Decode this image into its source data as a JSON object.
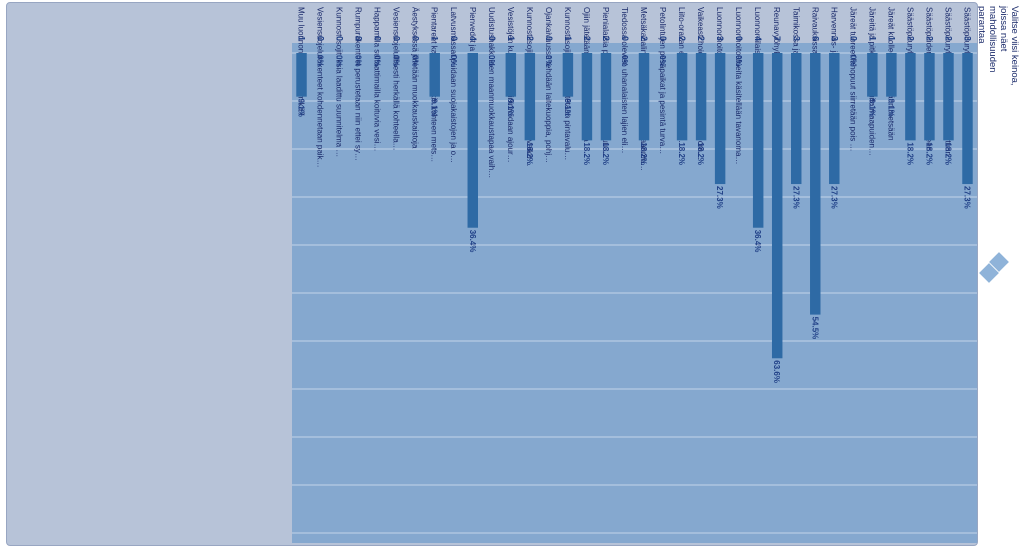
{
  "question": "Valitse viisi keinoa, joissa näet mahdollisuuden parantaa luonnonhoidon tasoa ja metsänkäytön kestävyyttä kasarmustehtäväksi",
  "chart_data": {
    "type": "bar",
    "orientation": "horizontal",
    "ylim": [
      0,
      100
    ],
    "categories": [
      "Säästöpuuryhmiä ja yksittäisiä monimuotoisuuden arvokohteita putta...",
      "Säästöpuuryhmät jätetään leimikosta tunnistettuihin erisaiasin...",
      "Säästöpuiden määrä valitaellan tilanteen ja metsänomistajan...",
      "Säästöpuuryhmiä poltetaan",
      "Järeät kuolleet puut jätetään metsään",
      "Järeitä ja pitkäikä-lehtopuita maapuiden varotaan rikkomasta",
      "Järeät tuoreet lahopuut siirretään pois koneiden tieltä",
      "Harvennus- ja uudistushakkuissa tehdään tekopökkelöitä",
      "Raivauksissa, energiapuuharvennuksissa ja kasvatushakkuissa säilytetään...",
      "Taimikossa ja kasvatusmetsässä säilytetään lehtipuuskoitus",
      "Reunavyöhykkeitä ja harvennushakkuissa jätetään riistatiheikköjä ja muuta",
      "Luonnontilaisen tai luonnontilaisen kaltainen arvokas elinympäristö...",
      "Luonnonhoitoalueita käsitellään tavanomaista varovaisemmin",
      "Luonnonhoitoalueilla edistetään luontoisuutta ja rakennepiirteitä tal...",
      "Vaikeasti hoidettavia luontokohteiden ominaispiirteitä ja rakenteita",
      "Liito-oravan elinpaikat ja lisääntymis- ja levähdyspaikat turvataan hakkuissa",
      "Petolintujen pesäpaikat ja pesintä turvataan hakkuissa",
      "Metsäkanalintujen pesiä suojataan maanmuokkauksella",
      "Tiedossa olevien uhanalaisten lajien elinpaikat turvataan",
      "Pienialaisia pienvesikohteita tuetaan uudistusalueen luonnonhoidoissa...",
      "Ojiin jätetään kaivu- ja perkauskatkoja",
      "Kunnostusojituksia perustetaan pintavalutuskenttiä",
      "Ojankaivuussa tehdään laitekuoppia, pohjapatoja ja laskeutusaltaita",
      "Kunnostusojituksia rakennetaan monivaikutteisia kosteikkoja",
      "Vesistöjen kuormitusta minimoidaan ajouransuunnittelussa",
      "Uudistushakkuiden maanmuokkaustapaa vaihdellaan maapohjan...",
      "Pienvedet ja ojien yltykset suojataan hakuissa ja tilapäisiä",
      "Latvusmassat puidaan suojakaistojen ja ojien ulkopuolelle",
      "Pientareet kaivetaan harkin kohteen metsänuudistamisessa ei käytetä...",
      "Äestyksessä jätetään muokkauskaistoja",
      "Vesiensuojelullisesti herkällä kohteella siirrytään...",
      "Happamilla sulfaattimailla koituvia vesistöhaittoja ehkäistään...",
      "Rumpurakenteet perustetaan niin ettei synny eroosiota vesiluussa",
      "Kunnostusojituksia laadittu suunnitelma tarkennettu vesiensuojeluun...",
      "Vesiensuojelurakenteet kohdennetaan paikkatietoselvitysten pohjalta...",
      "Muu luonnonhoitokeino, mikä?"
    ],
    "counts": [
      3,
      2,
      2,
      2,
      1,
      1,
      0,
      3,
      6,
      3,
      7,
      4,
      0,
      3,
      2,
      2,
      0,
      2,
      0,
      2,
      2,
      1,
      0,
      2,
      1,
      0,
      4,
      0,
      1,
      0,
      0,
      0,
      0,
      0,
      0,
      1
    ],
    "values": [
      27.3,
      18.2,
      18.2,
      18.2,
      9.1,
      9.1,
      0,
      27.3,
      54.5,
      27.3,
      63.6,
      36.4,
      0,
      27.3,
      18.2,
      18.2,
      0,
      18.2,
      0,
      18.2,
      18.2,
      9.1,
      0,
      18.2,
      9.1,
      0,
      36.4,
      0,
      9.1,
      0,
      0,
      0,
      0,
      0,
      0,
      9.1
    ],
    "value_labels": [
      "27.3%",
      "18.2%",
      "18.2%",
      "18.2%",
      "9.1%",
      "9.1%",
      "0%",
      "27.3%",
      "54.5%",
      "27.3%",
      "63.6%",
      "36.4%",
      "0%",
      "27.3%",
      "18.2%",
      "18.2%",
      "0%",
      "18.2%",
      "0%",
      "18.2%",
      "18.2%",
      "9.1%",
      "0%",
      "18.2%",
      "9.1%",
      "0%",
      "36.4%",
      "0%",
      "9.1%",
      "0%",
      "0%",
      "0%",
      "0%",
      "0%",
      "0%",
      "9.1%"
    ],
    "grid": true
  },
  "colors": {
    "bar": "#2e6aa5",
    "plot": "#85a8cf",
    "panel": "#b7c3d8",
    "text": "#1a2a6a",
    "label": "#1f3f86"
  }
}
